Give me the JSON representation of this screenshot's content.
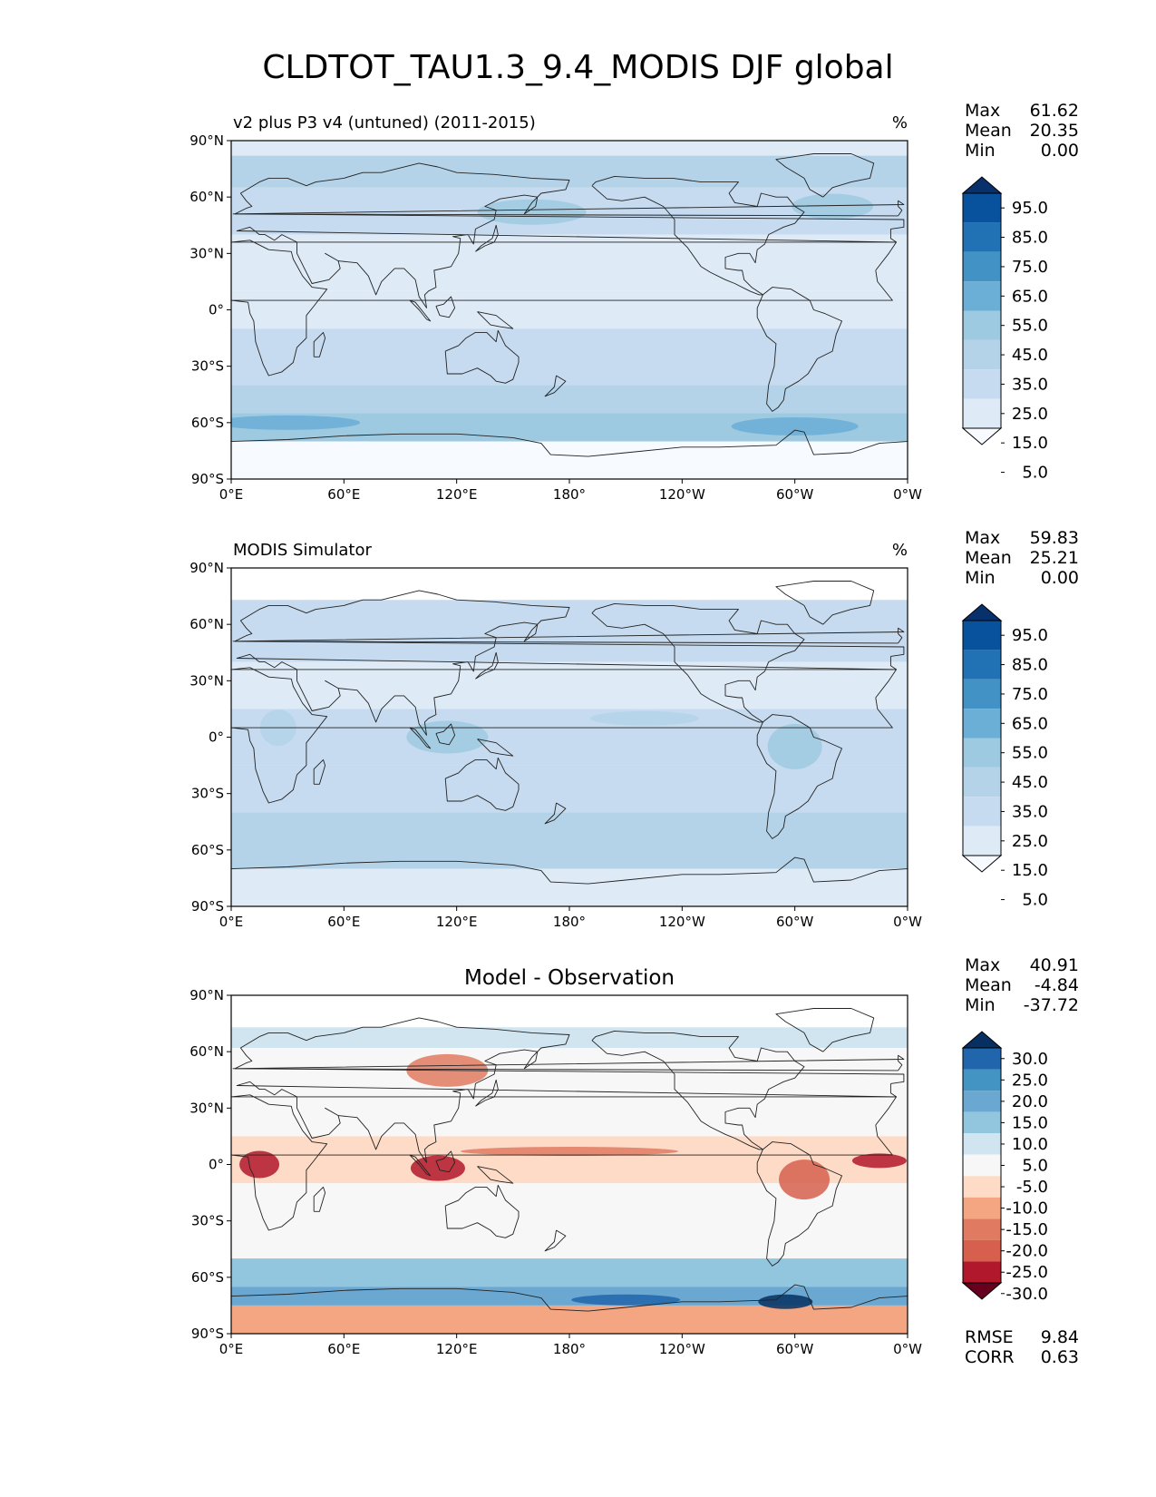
{
  "title": "CLDTOT_TAU1.3_9.4_MODIS DJF global",
  "axes": {
    "lat_ticks": [
      "90°N",
      "60°N",
      "30°N",
      "0°",
      "30°S",
      "60°S",
      "90°S"
    ],
    "lon_ticks": [
      "0°E",
      "60°E",
      "120°E",
      "180°",
      "120°W",
      "60°W",
      "0°W"
    ]
  },
  "chart_data": [
    {
      "type": "heatmap",
      "title": "v2 plus P3 v4 (untuned) (2011-2015)",
      "units": "%",
      "stats": [
        {
          "label": "Max",
          "value": "61.62"
        },
        {
          "label": "Mean",
          "value": "20.35"
        },
        {
          "label": "Min",
          "value": "0.00"
        }
      ],
      "colorbar": {
        "labels": [
          "95.0",
          "85.0",
          "75.0",
          "65.0",
          "55.0",
          "45.0",
          "35.0",
          "25.0",
          "15.0",
          "5.0"
        ],
        "colors": [
          "#08306b",
          "#08519c",
          "#2171b5",
          "#4292c6",
          "#6baed6",
          "#9ecae1",
          "#b4d3e9",
          "#c6dbef",
          "#deebf7",
          "#f7fbff"
        ]
      }
    },
    {
      "type": "heatmap",
      "title": "MODIS Simulator",
      "units": "%",
      "stats": [
        {
          "label": "Max",
          "value": "59.83"
        },
        {
          "label": "Mean",
          "value": "25.21"
        },
        {
          "label": "Min",
          "value": "0.00"
        }
      ],
      "colorbar": {
        "labels": [
          "95.0",
          "85.0",
          "75.0",
          "65.0",
          "55.0",
          "45.0",
          "35.0",
          "25.0",
          "15.0",
          "5.0"
        ],
        "colors": [
          "#08306b",
          "#08519c",
          "#2171b5",
          "#4292c6",
          "#6baed6",
          "#9ecae1",
          "#b4d3e9",
          "#c6dbef",
          "#deebf7",
          "#f7fbff"
        ]
      }
    },
    {
      "type": "heatmap",
      "title": "Model - Observation",
      "units": "",
      "stats": [
        {
          "label": "Max",
          "value": "40.91"
        },
        {
          "label": "Mean",
          "value": "-4.84"
        },
        {
          "label": "Min",
          "value": "-37.72"
        }
      ],
      "extra_stats": [
        {
          "label": "RMSE",
          "value": "9.84"
        },
        {
          "label": "CORR",
          "value": "0.63"
        }
      ],
      "colorbar": {
        "labels": [
          "30.0",
          "25.0",
          "20.0",
          "15.0",
          "10.0",
          "5.0",
          "-5.0",
          "-10.0",
          "-15.0",
          "-20.0",
          "-25.0",
          "-30.0"
        ],
        "colors": [
          "#053061",
          "#2166ac",
          "#4393c3",
          "#6aa8d2",
          "#92c5de",
          "#d1e5f0",
          "#f7f7f7",
          "#fddbc7",
          "#f4a582",
          "#e07b62",
          "#d6604d",
          "#b2182b",
          "#67001f"
        ]
      }
    }
  ]
}
